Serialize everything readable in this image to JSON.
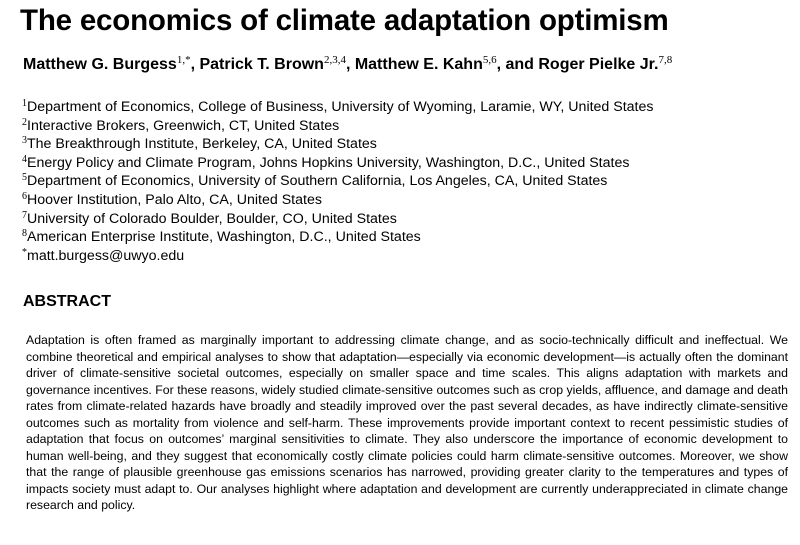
{
  "title": "The economics of climate adaptation optimism",
  "authors": [
    {
      "name": "Matthew G. Burgess",
      "marks": "1,*",
      "sep": ", "
    },
    {
      "name": "Patrick T. Brown",
      "marks": "2,3,4",
      "sep": ", "
    },
    {
      "name": "Matthew E. Kahn",
      "marks": "5,6",
      "sep": ", and "
    },
    {
      "name": "Roger Pielke Jr.",
      "marks": "7,8",
      "sep": ""
    }
  ],
  "affiliations": [
    {
      "mark": "1",
      "text": "Department of Economics, College of Business, University of Wyoming, Laramie, WY, United States"
    },
    {
      "mark": "2",
      "text": "Interactive Brokers, Greenwich, CT, United States"
    },
    {
      "mark": "3",
      "text": "The Breakthrough Institute, Berkeley, CA, United States"
    },
    {
      "mark": "4",
      "text": "Energy Policy and Climate Program, Johns Hopkins University, Washington, D.C., United States"
    },
    {
      "mark": "5",
      "text": "Department of Economics, University of Southern California, Los Angeles, CA, United States"
    },
    {
      "mark": "6",
      "text": "Hoover Institution, Palo Alto, CA, United States"
    },
    {
      "mark": "7",
      "text": "University of Colorado Boulder, Boulder, CO, United States"
    },
    {
      "mark": "8",
      "text": "American Enterprise Institute, Washington, D.C., United States"
    },
    {
      "mark": "*",
      "text": "matt.burgess@uwyo.edu"
    }
  ],
  "abstract": {
    "heading": "ABSTRACT",
    "body": "Adaptation is often framed as marginally important to addressing climate change, and as socio-technically difficult and ineffectual. We combine theoretical and empirical analyses to show that adaptation—especially via economic development—is actually often the dominant driver of climate-sensitive societal outcomes, especially on smaller space and time scales. This aligns adaptation with markets and governance incentives. For these reasons, widely studied climate-sensitive outcomes such as crop yields, affluence, and damage and death rates from climate-related hazards have broadly and steadily improved over the past several decades, as have indirectly climate-sensitive outcomes such as mortality from violence and self-harm. These improvements provide important context to recent pessimistic studies of adaptation that focus on outcomes’ marginal sensitivities to climate. They also underscore the importance of economic development to human well-being, and they suggest that economically costly climate policies could harm climate-sensitive outcomes. Moreover, we show that the range of plausible greenhouse gas emissions scenarios has narrowed, providing greater clarity to the temperatures and types of impacts society must adapt to. Our analyses highlight where adaptation and development are currently underappreciated in climate change research and policy."
  }
}
